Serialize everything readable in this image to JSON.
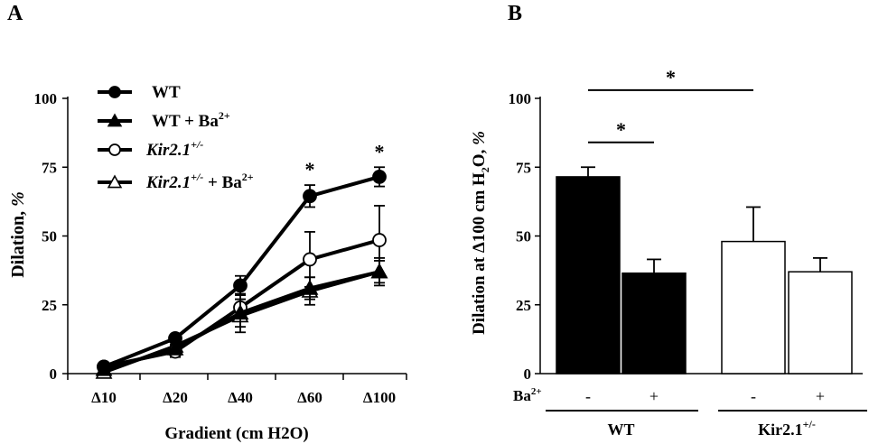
{
  "panels": {
    "a": {
      "letter": "A"
    },
    "b": {
      "letter": "B"
    }
  },
  "chart_data": [
    {
      "type": "line",
      "xlabel": "Gradient (cm H2O)",
      "ylabel": "Dilation, %",
      "ylim": [
        0,
        100
      ],
      "yticks": [
        "0",
        "25",
        "50",
        "75",
        "100"
      ],
      "categories": [
        "Δ10",
        "Δ20",
        "Δ40",
        "Δ60",
        "Δ100"
      ],
      "series": [
        {
          "name": "WT",
          "sup": "",
          "suffix": "",
          "italic": false,
          "marker": "filled-circle",
          "values": [
            2.5,
            12.8,
            32,
            64.5,
            71.5
          ],
          "errors": [
            1,
            1.5,
            3.5,
            4,
            3.5
          ]
        },
        {
          "name": "WT + Ba",
          "sup": "2+",
          "suffix": "",
          "italic": false,
          "marker": "filled-triangle",
          "values": [
            1.5,
            9,
            22,
            31,
            37
          ],
          "errors": [
            1,
            1.5,
            5,
            4,
            4
          ]
        },
        {
          "name": "Kir2.1",
          "sup": "+/-",
          "suffix": "",
          "italic": true,
          "marker": "open-circle",
          "values": [
            2.5,
            8,
            24,
            41.5,
            48.5
          ],
          "errors": [
            1,
            2,
            5,
            10,
            12.5
          ]
        },
        {
          "name": "Kir2.1",
          "sup": "+/-",
          "suffix": " + Ba2+",
          "italic": true,
          "marker": "open-triangle",
          "values": [
            0.5,
            10,
            21,
            30,
            37
          ],
          "errors": [
            1,
            3,
            6,
            5,
            5
          ]
        }
      ],
      "significance": [
        {
          "category": "Δ60",
          "label": "*"
        },
        {
          "category": "Δ100",
          "label": "*"
        }
      ],
      "legend": "top-left"
    },
    {
      "type": "bar",
      "ylabel": "Dilation at Δ100 cm H2O, %",
      "ylim": [
        0,
        100
      ],
      "yticks": [
        "0",
        "25",
        "50",
        "75",
        "100"
      ],
      "treatment_label": "Ba2+",
      "bars": [
        {
          "group": "WT",
          "treatment": "-",
          "value": 71.5,
          "error": 3.5,
          "fill": "#000000"
        },
        {
          "group": "WT",
          "treatment": "+",
          "value": 36.5,
          "error": 5,
          "fill": "#000000"
        },
        {
          "group": "Kir2.1+/-",
          "treatment": "-",
          "value": 48,
          "error": 12.5,
          "fill": "#ffffff"
        },
        {
          "group": "Kir2.1+/-",
          "treatment": "+",
          "value": 37,
          "error": 5,
          "fill": "#ffffff"
        }
      ],
      "groups": [
        {
          "name": "WT",
          "sup": ""
        },
        {
          "name": "Kir2.1",
          "sup": "+/-"
        }
      ],
      "significance": [
        {
          "from_bar": 0,
          "to_bar": 1,
          "y": 84,
          "label": "*"
        },
        {
          "from_bar": 0,
          "to_bar": 2,
          "y": 103,
          "label": "*"
        }
      ]
    }
  ]
}
